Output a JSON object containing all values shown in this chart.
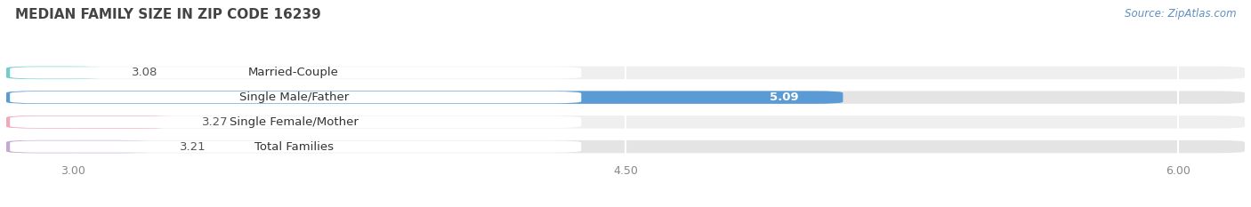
{
  "title": "MEDIAN FAMILY SIZE IN ZIP CODE 16239",
  "source": "Source: ZipAtlas.com",
  "categories": [
    "Married-Couple",
    "Single Male/Father",
    "Single Female/Mother",
    "Total Families"
  ],
  "values": [
    3.08,
    5.09,
    3.27,
    3.21
  ],
  "colors": [
    "#6ecfca",
    "#5b9bd5",
    "#f4a7b9",
    "#c3a8d1"
  ],
  "xlim_min": 2.82,
  "xlim_max": 6.18,
  "xticks": [
    3.0,
    4.5,
    6.0
  ],
  "bar_height": 0.52,
  "label_fontsize": 9.5,
  "value_fontsize": 9.5,
  "title_fontsize": 11,
  "fig_bg_color": "#ffffff",
  "row_bg_odd": "#efefef",
  "row_bg_even": "#e4e4e4",
  "label_bg_color": "#ffffff",
  "grid_color": "#ffffff",
  "title_color": "#444444",
  "value_color_dark": "#555555",
  "value_color_white": "#ffffff",
  "source_color": "#6090c0",
  "tick_color": "#888888"
}
